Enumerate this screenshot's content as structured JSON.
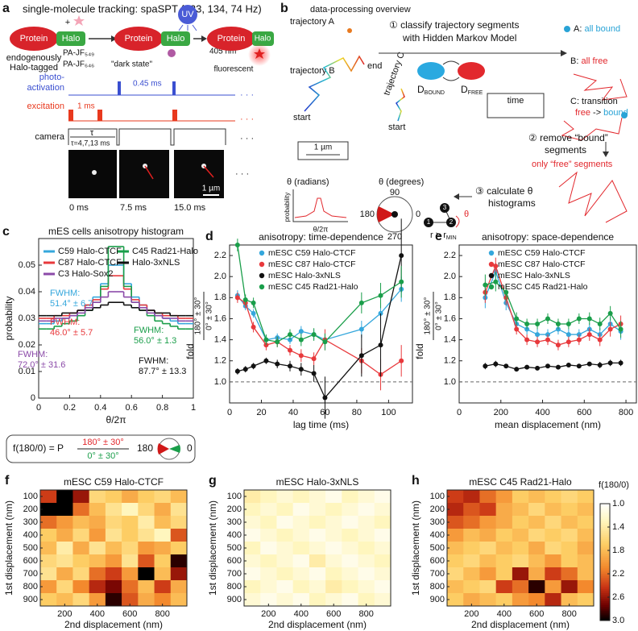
{
  "panel_a": {
    "label": "a",
    "title": "single-molecule tracking: spaSPT (223, 134, 74 Hz)",
    "protein": [
      "Protein",
      "Protein",
      "Protein"
    ],
    "halo": [
      "Halo",
      "Halo",
      "Halo"
    ],
    "plus": "+",
    "endogenously": "endogenously",
    "halo_tagged": "Halo-tagged",
    "dye_1": "PA-JF₅₄₉",
    "dye_2": "PA-JF₆₄₆",
    "dark_state": "\"dark state\"",
    "uv": "UV",
    "uv_nm": "405 nm",
    "fluorescent": "fluorescent",
    "photo_1": "photo-",
    "photo_2": "activation",
    "pulse_photo": "0.45 ms",
    "excitation": "excitation",
    "pulse_exc": "1 ms",
    "camera": "camera",
    "tau": "τ",
    "tau_values": "τ=4,7,13 ms",
    "scale": "1 µm",
    "frames": [
      "0 ms",
      "7.5 ms",
      "15.0 ms"
    ],
    "ellipsis": "· · ·"
  },
  "panel_b": {
    "label": "b",
    "title": "data-processing overview",
    "traj_a": "trajectory A",
    "traj_b": "trajectory B",
    "traj_c": "trajectory C",
    "start_b": "start",
    "end_b": "end",
    "start_c": "start",
    "scale": "1 µm",
    "step_1a": "① classify trajectory segments",
    "step_1b": "with Hidden Markov Model",
    "a_prefix": "A: ",
    "a_text": "all bound",
    "b_prefix": "B: ",
    "b_text": "all free",
    "c_text": "C: transition",
    "c_free": "free",
    "c_arrow": " -> ",
    "c_bound": "bound",
    "d_main": [
      "D",
      "D"
    ],
    "d_sub": [
      "BOUND",
      "FREE"
    ],
    "time": "time",
    "step_2a": "② remove “bound”",
    "step_2b": "segments",
    "step_2c": "only “free” segments",
    "step_3a": "③ calculate θ",
    "step_3b": "histograms",
    "theta_rad": "θ (radians)",
    "theta_deg": "θ (degrees)",
    "probability": "probability",
    "theta_x": "θ/2π",
    "deg_90": "90",
    "deg_180": "180",
    "deg_0": "0",
    "deg_270": "270",
    "r_main": "r > r",
    "r_sub": "MIN",
    "theta": "θ",
    "node_1": "1",
    "node_2": "2",
    "node_3": "3"
  },
  "chart_data": [
    {
      "type": "histogram",
      "label": "c",
      "title": "mES cells anisotropy histogram",
      "xlabel": "θ/2π",
      "ylabel": "probability",
      "bins": [
        0,
        0.05,
        0.1,
        0.15,
        0.2,
        0.25,
        0.3,
        0.35,
        0.4,
        0.45,
        0.5,
        0.55,
        0.6,
        0.65,
        0.7,
        0.75,
        0.8,
        0.85,
        0.9,
        0.95,
        1
      ],
      "xlim": [
        0,
        1
      ],
      "xticks": [
        0,
        0.2,
        0.4,
        0.6,
        0.8,
        1
      ],
      "ylim": [
        0,
        0.06
      ],
      "yticks": [
        0,
        0.01,
        0.02,
        0.03,
        0.04,
        0.05
      ],
      "series": [
        {
          "name": "C59 Halo-CTCF",
          "color": "#35a7dc",
          "values": [
            0.028,
            0.028,
            0.029,
            0.03,
            0.031,
            0.033,
            0.035,
            0.038,
            0.043,
            0.05,
            0.05,
            0.043,
            0.038,
            0.035,
            0.033,
            0.031,
            0.03,
            0.029,
            0.028,
            0.028
          ]
        },
        {
          "name": "C87 Halo-CTCF",
          "color": "#e8393c",
          "values": [
            0.03,
            0.03,
            0.031,
            0.031,
            0.032,
            0.033,
            0.035,
            0.037,
            0.041,
            0.046,
            0.046,
            0.041,
            0.037,
            0.035,
            0.033,
            0.032,
            0.031,
            0.031,
            0.03,
            0.03
          ]
        },
        {
          "name": "C45 Rad21-Halo",
          "color": "#1a9e4a",
          "values": [
            0.026,
            0.026,
            0.027,
            0.028,
            0.029,
            0.031,
            0.033,
            0.036,
            0.042,
            0.057,
            0.057,
            0.042,
            0.036,
            0.033,
            0.031,
            0.029,
            0.028,
            0.027,
            0.026,
            0.026
          ]
        },
        {
          "name": "Halo-3xNLS",
          "color": "#111111",
          "values": [
            0.031,
            0.031,
            0.031,
            0.032,
            0.032,
            0.033,
            0.033,
            0.034,
            0.035,
            0.036,
            0.036,
            0.035,
            0.034,
            0.033,
            0.033,
            0.032,
            0.032,
            0.031,
            0.031,
            0.031
          ]
        },
        {
          "name": "C3 Halo-Sox2",
          "color": "#8b4aa8",
          "values": [
            0.029,
            0.029,
            0.03,
            0.03,
            0.031,
            0.032,
            0.034,
            0.036,
            0.038,
            0.04,
            0.04,
            0.038,
            0.036,
            0.034,
            0.032,
            0.031,
            0.03,
            0.03,
            0.029,
            0.029
          ]
        }
      ],
      "annotations": [
        {
          "lines": [
            "FWHM:",
            "51.4° ± 6.7"
          ],
          "color": "#35a7dc"
        },
        {
          "lines": [
            "FWHM:",
            "46.0° ± 5.7"
          ],
          "color": "#e8393c"
        },
        {
          "lines": [
            "FWHM:",
            "56.0° ± 1.3"
          ],
          "color": "#1a9e4a"
        },
        {
          "lines": [
            "FWHM:",
            "87.7° ± 13.3"
          ],
          "color": "#111111"
        },
        {
          "lines": [
            "FWHM:",
            "72.0° ± 31.6"
          ],
          "color": "#8b4aa8"
        }
      ],
      "formula": {
        "lhs": "f(180/0) = P",
        "numerator": "180° ± 30°",
        "denominator": "0° ± 30°",
        "left": "180",
        "right": "0"
      }
    },
    {
      "type": "line",
      "label": "d",
      "title": "anisotropy: time-dependence",
      "xlabel": "lag time (ms)",
      "ylabel": "fold",
      "ylabel_numerator": "180° ± 30°",
      "ylabel_denominator": "0° ± 30°",
      "xlim": [
        0,
        115
      ],
      "xticks": [
        0,
        20,
        40,
        60,
        80,
        100
      ],
      "ylim": [
        0.8,
        2.3
      ],
      "yticks": [
        {
          "value": 1,
          "label": "1.0"
        },
        1.2,
        1.4,
        1.6,
        1.8,
        {
          "value": 2,
          "label": "2.0"
        },
        2.2
      ],
      "reference": 1,
      "x": [
        5,
        10,
        15,
        23,
        30,
        38,
        45,
        53,
        60,
        83,
        95,
        108
      ],
      "series": [
        {
          "name": "mESC C59 Halo-CTCF",
          "color": "#35a7dc",
          "values": [
            1.82,
            1.72,
            1.65,
            1.4,
            1.42,
            1.4,
            1.48,
            1.45,
            1.4,
            1.5,
            1.65,
            1.88
          ],
          "errors": [
            0.05,
            0.04,
            0.04,
            0.04,
            0.04,
            0.04,
            0.05,
            0.05,
            0.06,
            0.08,
            0.1,
            0.12
          ]
        },
        {
          "name": "mESC C87 Halo-CTCF",
          "color": "#e8393c",
          "values": [
            1.8,
            1.75,
            1.52,
            1.35,
            1.38,
            1.3,
            1.25,
            1.22,
            1.4,
            1.2,
            1.07,
            1.2
          ],
          "errors": [
            0.05,
            0.05,
            0.05,
            0.05,
            0.05,
            0.05,
            0.06,
            0.06,
            0.1,
            0.12,
            0.15,
            0.15
          ]
        },
        {
          "name": "mESC Halo-3xNLS",
          "color": "#111111",
          "values": [
            1.1,
            1.12,
            1.15,
            1.2,
            1.17,
            1.15,
            1.12,
            1.08,
            0.85,
            1.25,
            1.35,
            2.2
          ],
          "errors": [
            0.03,
            0.03,
            0.03,
            0.03,
            0.04,
            0.05,
            0.06,
            0.08,
            0.2,
            0.2,
            0.3,
            0.35
          ]
        },
        {
          "name": "mESC C45 Rad21-Halo",
          "color": "#1a9e4a",
          "values": [
            2.3,
            1.78,
            1.75,
            1.4,
            1.38,
            1.45,
            1.4,
            1.45,
            1.38,
            1.75,
            1.82,
            1.95
          ],
          "errors": [
            0.06,
            0.05,
            0.05,
            0.05,
            0.05,
            0.05,
            0.06,
            0.06,
            0.08,
            0.1,
            0.12,
            0.15
          ]
        }
      ]
    },
    {
      "type": "line",
      "label": "e",
      "title": "anisotropy: space-dependence",
      "xlabel": "mean displacement (nm)",
      "ylabel": "fold",
      "ylabel_numerator": "180° ± 30°",
      "ylabel_denominator": "0° ± 30°",
      "xlim": [
        0,
        850
      ],
      "xticks": [
        0,
        200,
        400,
        600,
        800
      ],
      "ylim": [
        0.8,
        2.3
      ],
      "yticks": [
        {
          "value": 1,
          "label": "1.0"
        },
        1.2,
        1.4,
        1.6,
        1.8,
        {
          "value": 2,
          "label": "2.0"
        },
        2.2
      ],
      "reference": 1,
      "x": [
        125,
        175,
        225,
        275,
        325,
        375,
        425,
        475,
        525,
        575,
        625,
        675,
        725,
        775
      ],
      "series": [
        {
          "name": "mESC C59 Halo-CTCF",
          "color": "#35a7dc",
          "values": [
            1.8,
            2.05,
            1.75,
            1.55,
            1.5,
            1.45,
            1.45,
            1.5,
            1.45,
            1.45,
            1.5,
            1.45,
            1.55,
            1.48
          ],
          "errors": [
            0.1,
            0.08,
            0.07,
            0.05,
            0.05,
            0.05,
            0.05,
            0.05,
            0.05,
            0.05,
            0.06,
            0.06,
            0.07,
            0.08
          ]
        },
        {
          "name": "mESC C87 Halo-CTCF",
          "color": "#e8393c",
          "values": [
            1.85,
            2.1,
            1.8,
            1.5,
            1.4,
            1.38,
            1.4,
            1.35,
            1.38,
            1.4,
            1.45,
            1.4,
            1.5,
            1.55
          ],
          "errors": [
            0.1,
            0.08,
            0.07,
            0.05,
            0.05,
            0.05,
            0.05,
            0.05,
            0.05,
            0.05,
            0.06,
            0.06,
            0.07,
            0.08
          ]
        },
        {
          "name": "mESC Halo-3xNLS",
          "color": "#111111",
          "values": [
            1.15,
            1.17,
            1.15,
            1.12,
            1.14,
            1.13,
            1.15,
            1.14,
            1.16,
            1.15,
            1.17,
            1.16,
            1.18,
            1.18
          ],
          "errors": [
            0.03,
            0.03,
            0.02,
            0.02,
            0.02,
            0.02,
            0.02,
            0.02,
            0.02,
            0.02,
            0.02,
            0.03,
            0.03,
            0.03
          ]
        },
        {
          "name": "mESC C45 Rad21-Halo",
          "color": "#1a9e4a",
          "values": [
            1.92,
            1.95,
            1.85,
            1.6,
            1.55,
            1.55,
            1.6,
            1.55,
            1.55,
            1.6,
            1.6,
            1.55,
            1.65,
            1.5
          ],
          "errors": [
            0.1,
            0.09,
            0.08,
            0.06,
            0.05,
            0.05,
            0.05,
            0.05,
            0.05,
            0.05,
            0.06,
            0.06,
            0.07,
            0.08
          ]
        }
      ]
    },
    {
      "type": "heatmap",
      "label": "f",
      "title": "mESC C59 Halo-CTCF",
      "xlabel": "2nd displacement (nm)",
      "ylabel": "1st displacement (nm)",
      "x": [
        100,
        200,
        300,
        400,
        500,
        600,
        700,
        800,
        900
      ],
      "y": [
        100,
        200,
        300,
        400,
        500,
        600,
        700,
        800,
        900
      ],
      "xlim": [
        50,
        950
      ],
      "ylim": [
        50,
        950
      ],
      "xticks": [
        200,
        400,
        600,
        800
      ],
      "yticks": [
        100,
        200,
        300,
        400,
        500,
        600,
        700,
        800,
        900
      ],
      "clim": [
        1,
        3
      ],
      "values": [
        [
          2.4,
          3.0,
          2.6,
          1.6,
          1.7,
          1.9,
          1.7,
          1.6,
          1.8
        ],
        [
          3.0,
          3.0,
          2.2,
          1.8,
          1.5,
          1.3,
          1.6,
          1.9,
          1.5
        ],
        [
          2.2,
          2.0,
          1.8,
          1.9,
          1.6,
          1.7,
          1.4,
          1.8,
          1.6
        ],
        [
          1.7,
          1.9,
          1.6,
          2.0,
          1.5,
          1.7,
          1.5,
          1.3,
          2.3
        ],
        [
          1.8,
          1.4,
          1.9,
          1.5,
          1.8,
          1.6,
          2.0,
          1.9,
          1.7
        ],
        [
          1.6,
          1.5,
          1.7,
          1.8,
          2.0,
          1.5,
          2.3,
          1.7,
          2.9
        ],
        [
          1.5,
          1.9,
          1.6,
          2.2,
          2.4,
          2.0,
          3.0,
          1.8,
          2.6
        ],
        [
          2.0,
          1.6,
          2.1,
          2.5,
          2.7,
          2.2,
          1.8,
          2.4,
          1.9
        ],
        [
          1.7,
          1.8,
          1.6,
          2.0,
          2.9,
          2.3,
          1.9,
          2.1,
          1.8
        ]
      ]
    },
    {
      "type": "heatmap",
      "label": "g",
      "title": "mESC Halo-3xNLS",
      "xlabel": "2nd displacement (nm)",
      "ylabel": "1st displacement (nm)",
      "x": [
        100,
        200,
        300,
        400,
        500,
        600,
        700,
        800,
        900
      ],
      "y": [
        100,
        200,
        300,
        400,
        500,
        600,
        700,
        800,
        900
      ],
      "xlim": [
        50,
        950
      ],
      "ylim": [
        50,
        950
      ],
      "xticks": [
        200,
        400,
        600,
        800
      ],
      "yticks": [
        100,
        200,
        300,
        400,
        500,
        600,
        700,
        800,
        900
      ],
      "clim": [
        1,
        3
      ],
      "values": [
        [
          1.4,
          1.3,
          1.2,
          1.3,
          1.2,
          1.1,
          1.3,
          1.2,
          1.1
        ],
        [
          1.3,
          1.2,
          1.3,
          1.1,
          1.2,
          1.3,
          1.2,
          1.1,
          1.2
        ],
        [
          1.2,
          1.3,
          1.1,
          1.2,
          1.3,
          1.2,
          1.1,
          1.2,
          1.3
        ],
        [
          1.1,
          1.2,
          1.3,
          1.2,
          1.1,
          1.2,
          1.3,
          1.2,
          1.1
        ],
        [
          1.3,
          1.1,
          1.2,
          1.3,
          1.2,
          1.1,
          1.2,
          1.3,
          1.2
        ],
        [
          1.2,
          1.3,
          1.2,
          1.1,
          1.4,
          1.2,
          1.1,
          1.2,
          1.3
        ],
        [
          1.1,
          1.2,
          1.3,
          1.2,
          1.1,
          1.3,
          1.2,
          1.1,
          1.2
        ],
        [
          1.3,
          1.2,
          1.1,
          1.3,
          1.2,
          1.4,
          1.3,
          1.2,
          1.1
        ],
        [
          1.2,
          1.1,
          1.2,
          1.1,
          1.3,
          1.2,
          1.1,
          1.3,
          1.2
        ]
      ]
    },
    {
      "type": "heatmap",
      "label": "h",
      "title": "mESC C45 Rad21-Halo",
      "xlabel": "2nd displacement (nm)",
      "ylabel": "1st displacement (nm)",
      "x": [
        100,
        200,
        300,
        400,
        500,
        600,
        700,
        800,
        900
      ],
      "y": [
        100,
        200,
        300,
        400,
        500,
        600,
        700,
        800,
        900
      ],
      "xlim": [
        50,
        950
      ],
      "ylim": [
        50,
        950
      ],
      "xticks": [
        200,
        400,
        600,
        800
      ],
      "yticks": [
        100,
        200,
        300,
        400,
        500,
        600,
        700,
        800,
        900
      ],
      "clim": [
        1,
        3
      ],
      "colorbar_label": "f(180/0)",
      "cticks": [
        {
          "value": 1,
          "label": "1.0"
        },
        1.4,
        1.8,
        2.2,
        2.6,
        {
          "value": 3,
          "label": "3.0"
        }
      ],
      "values": [
        [
          2.4,
          2.5,
          2.2,
          2.0,
          1.7,
          1.8,
          1.7,
          1.6,
          1.7
        ],
        [
          2.5,
          2.3,
          2.4,
          1.9,
          1.8,
          1.6,
          1.8,
          1.7,
          1.8
        ],
        [
          2.3,
          2.2,
          2.0,
          1.9,
          1.7,
          1.8,
          1.6,
          1.8,
          1.7
        ],
        [
          2.0,
          1.8,
          1.9,
          1.7,
          1.8,
          1.6,
          1.7,
          1.6,
          1.8
        ],
        [
          1.8,
          1.7,
          1.6,
          1.8,
          1.7,
          1.9,
          1.6,
          1.7,
          1.9
        ],
        [
          1.7,
          1.6,
          1.8,
          1.7,
          1.6,
          1.8,
          2.0,
          1.7,
          1.8
        ],
        [
          1.6,
          1.8,
          2.0,
          1.7,
          2.6,
          1.9,
          2.4,
          2.2,
          1.8
        ],
        [
          1.8,
          1.7,
          1.6,
          2.4,
          2.2,
          2.9,
          2.0,
          2.6,
          2.1
        ],
        [
          1.7,
          1.9,
          1.8,
          1.7,
          2.0,
          2.1,
          2.5,
          1.8,
          1.7
        ]
      ]
    }
  ]
}
